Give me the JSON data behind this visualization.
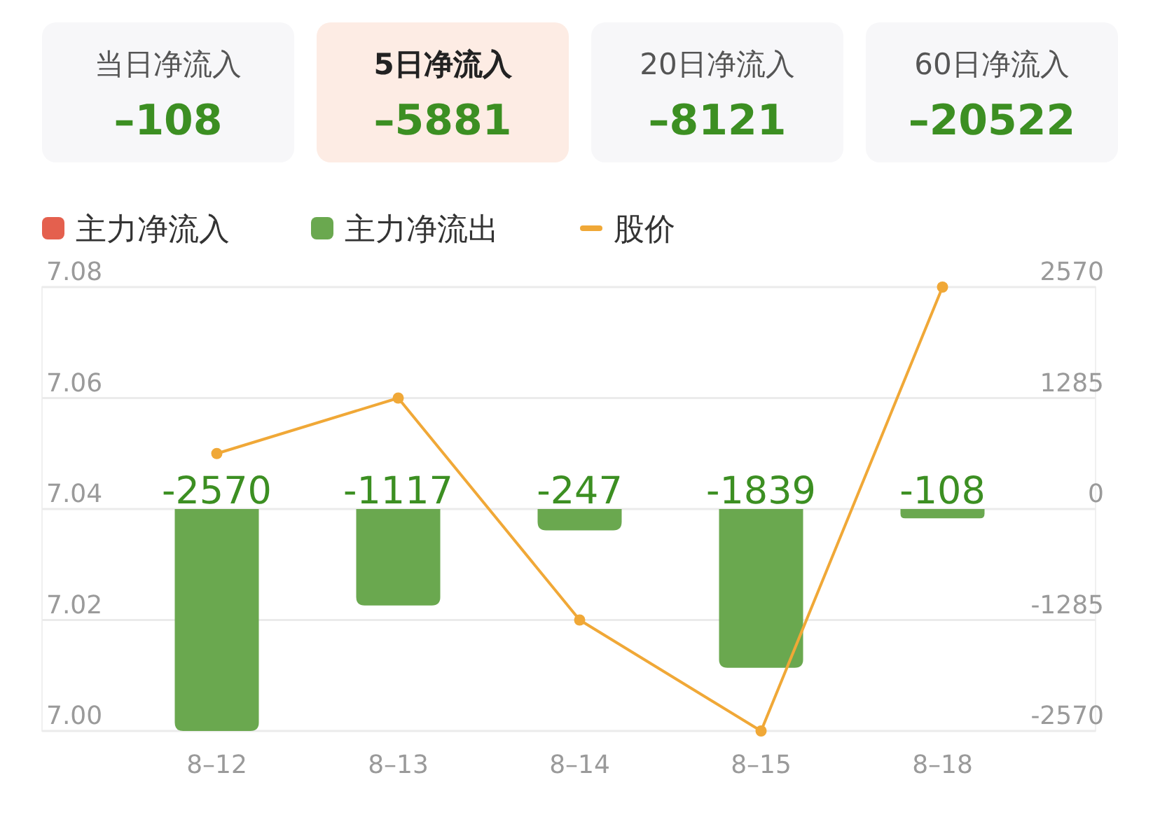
{
  "chart_data": [
    {
      "type": "other",
      "annotations": [
        "当日净流入",
        "–108",
        "5日净流入",
        "–5881",
        "20日净流入",
        "–8121",
        "60日净流入",
        "–20522"
      ]
    },
    {
      "type": "bar",
      "categories": [
        "8–12",
        "8–13",
        "8–14",
        "8–15",
        "8–18"
      ],
      "series": [
        {
          "name": "主力净流入",
          "color": "#e4604e",
          "axis": "y2",
          "values": [
            null,
            null,
            null,
            null,
            null
          ]
        },
        {
          "name": "主力净流出",
          "color": "#6aa84f",
          "axis": "y2",
          "values": [
            -2570,
            -1117,
            -247,
            -1839,
            -108
          ],
          "value_labels": [
            "-2570",
            "-1117",
            "-247",
            "-1839",
            "-108"
          ]
        },
        {
          "name": "股价",
          "type": "line",
          "color": "#f0a837",
          "marker": "circle",
          "values": [
            7.05,
            7.06,
            7.02,
            7.0,
            7.08
          ]
        }
      ],
      "legend": "top left",
      "grid": "y",
      "ylim": [
        7.0,
        7.08
      ],
      "yticks": [
        {
          "value": 7.0,
          "label": "7.00"
        },
        {
          "value": 7.02,
          "label": "7.02"
        },
        {
          "value": 7.04,
          "label": "7.04"
        },
        {
          "value": 7.06,
          "label": "7.06"
        },
        {
          "value": 7.08,
          "label": "7.08"
        }
      ],
      "y2lim": [
        -2570,
        2570
      ],
      "y2ticks": [
        -2570,
        -1285,
        0,
        1285,
        2570
      ]
    }
  ]
}
